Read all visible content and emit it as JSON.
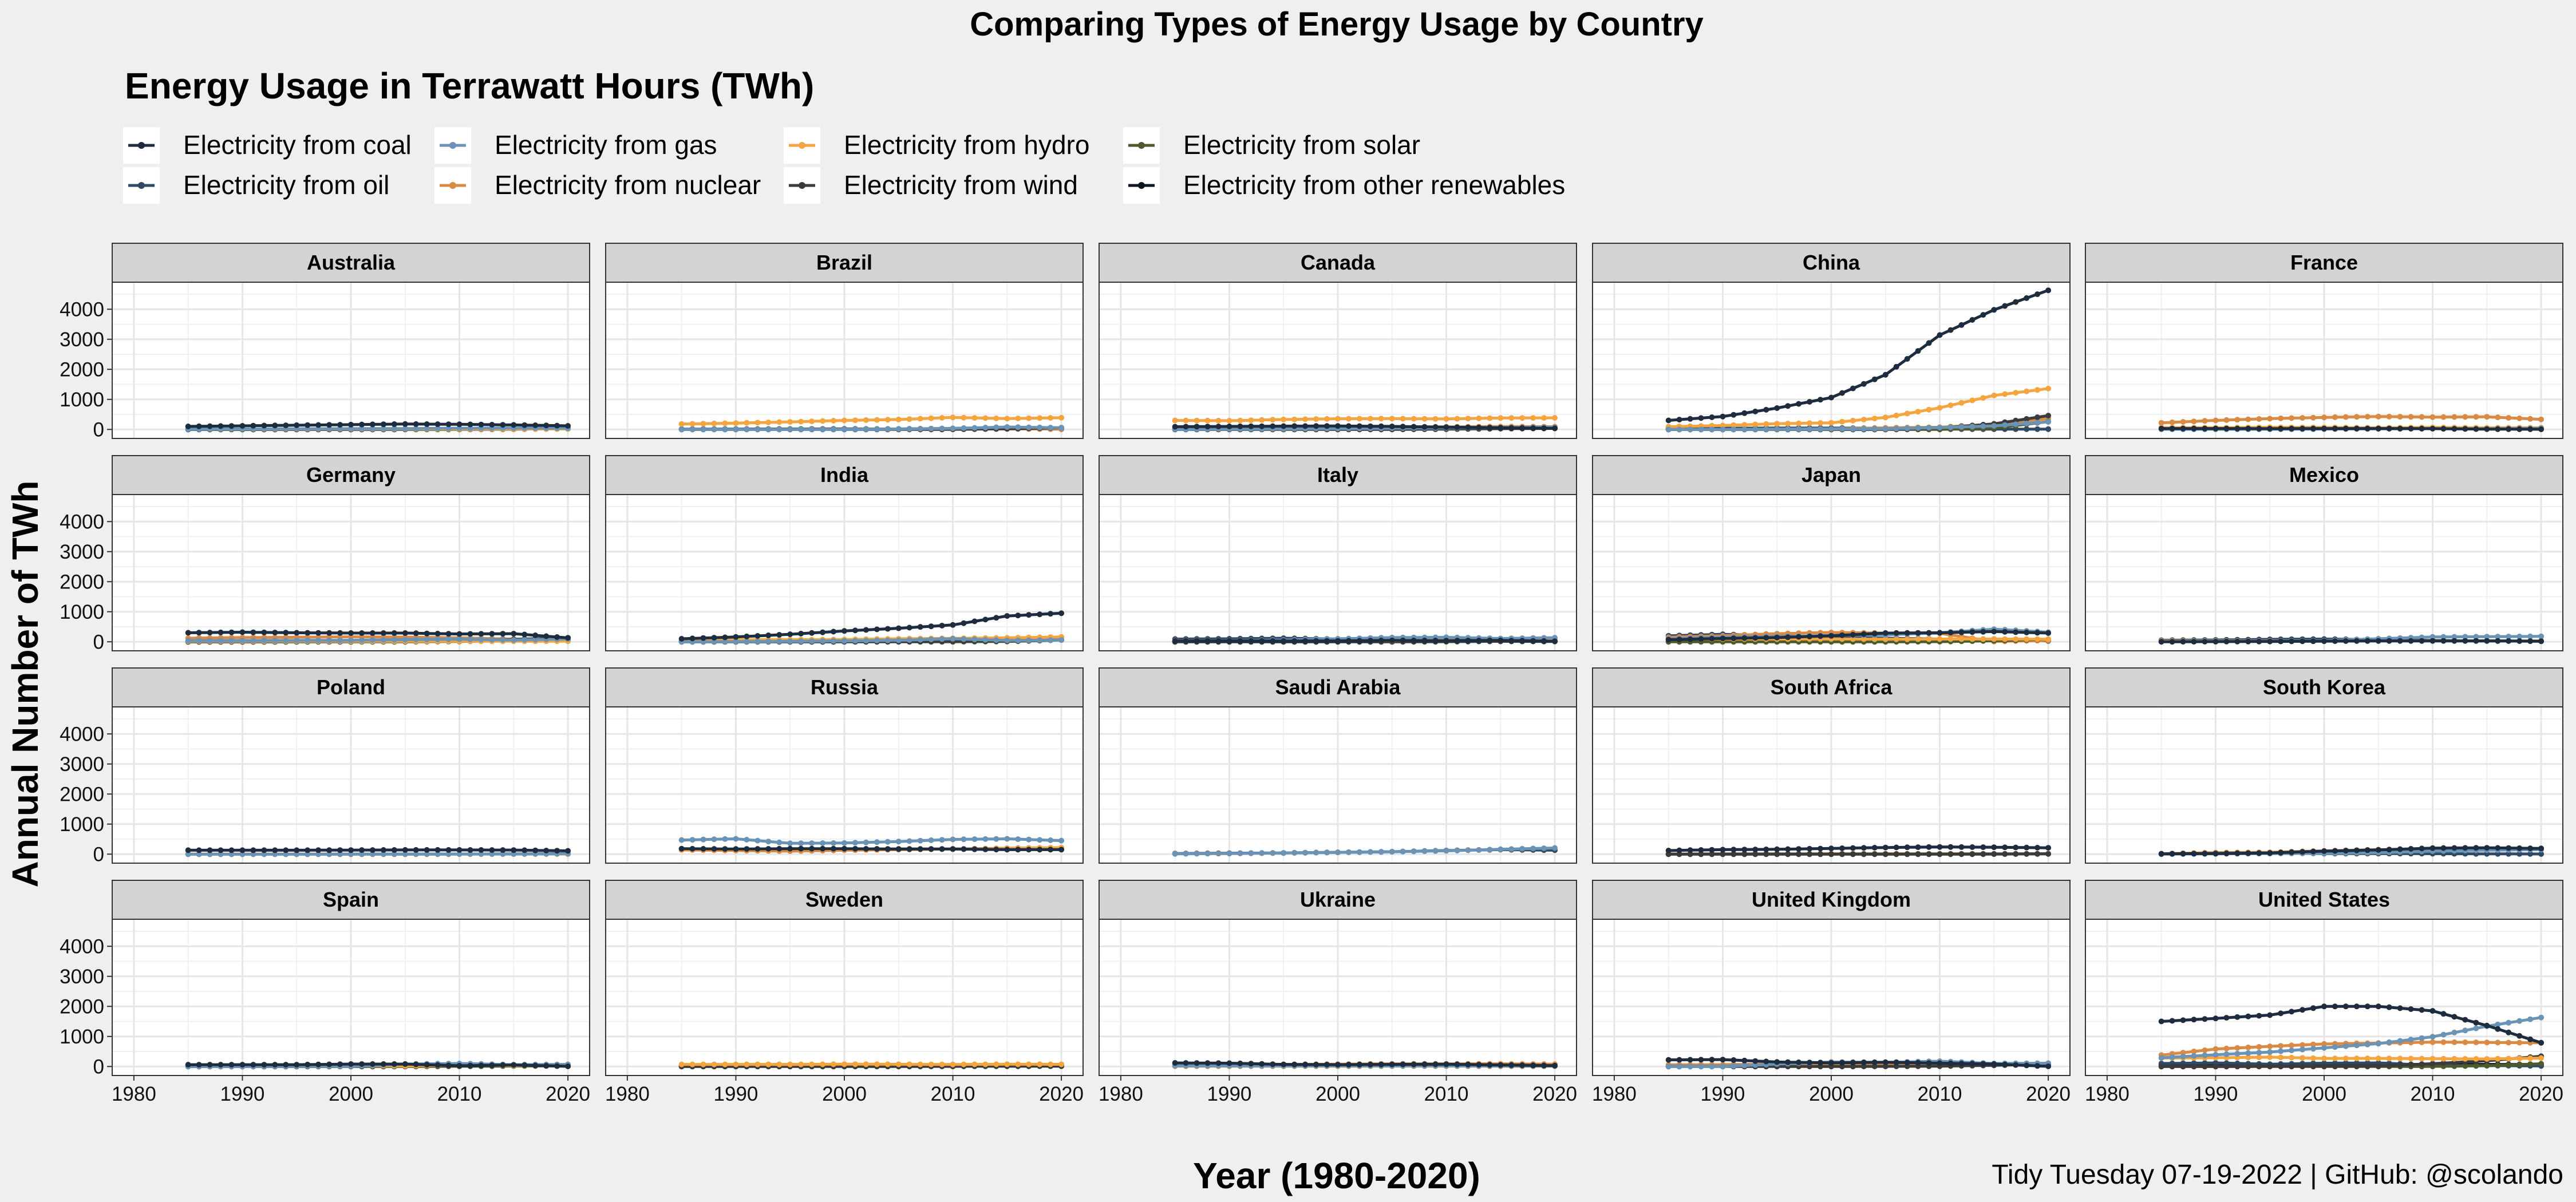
{
  "title": "Comparing Types of Energy Usage by Country",
  "legend_title": "Energy Usage in Terrawatt Hours (TWh)",
  "caption": "Tidy Tuesday 07-19-2022 | GitHub: @scolando",
  "colors": {
    "coal": "#1d2c3e",
    "oil": "#2f4a66",
    "gas": "#6a93b6",
    "nuclear": "#d98a44",
    "hydro": "#f4a540",
    "wind": "#3b3b3b",
    "solar": "#4c5a2c",
    "other": "#0e1620",
    "background": "#efefef",
    "panel": "#ffffff",
    "strip": "#d3d3d3",
    "grid": "#e6e6e6"
  },
  "chart_data": {
    "type": "line",
    "facet": "country",
    "xlabel": "Year (1980-2020)",
    "ylabel": "Annual Number of TWh",
    "xlim": [
      1978,
      2022
    ],
    "ylim": [
      -300,
      4900
    ],
    "x_ticks": [
      1980,
      1990,
      2000,
      2010,
      2020
    ],
    "y_ticks": [
      0,
      1000,
      2000,
      3000,
      4000
    ],
    "grid": true,
    "legend_position": "top-left",
    "x": [
      1985,
      1990,
      1995,
      2000,
      2005,
      2010,
      2015,
      2020
    ],
    "series_names": [
      {
        "key": "coal",
        "name": "Electricity from coal"
      },
      {
        "key": "gas",
        "name": "Electricity from gas"
      },
      {
        "key": "hydro",
        "name": "Electricity from hydro"
      },
      {
        "key": "solar",
        "name": "Electricity from solar"
      },
      {
        "key": "oil",
        "name": "Electricity from oil"
      },
      {
        "key": "nuclear",
        "name": "Electricity from nuclear"
      },
      {
        "key": "wind",
        "name": "Electricity from wind"
      },
      {
        "key": "other",
        "name": "Electricity from other renewables"
      }
    ],
    "facets": [
      {
        "country": "Australia",
        "series": {
          "coal": [
            100,
            120,
            140,
            160,
            180,
            170,
            150,
            120
          ],
          "gas": [
            10,
            15,
            20,
            25,
            30,
            40,
            45,
            40
          ],
          "hydro": [
            15,
            15,
            15,
            16,
            16,
            14,
            14,
            15
          ],
          "wind": [
            0,
            0,
            0,
            0,
            2,
            5,
            12,
            20
          ],
          "solar": [
            0,
            0,
            0,
            0,
            0,
            2,
            6,
            30
          ]
        }
      },
      {
        "country": "Brazil",
        "series": {
          "hydro": [
            180,
            210,
            250,
            300,
            330,
            400,
            360,
            390
          ],
          "gas": [
            0,
            0,
            2,
            5,
            15,
            35,
            80,
            55
          ],
          "oil": [
            10,
            12,
            14,
            18,
            14,
            15,
            25,
            10
          ],
          "wind": [
            0,
            0,
            0,
            0,
            0,
            2,
            22,
            55
          ],
          "other": [
            5,
            7,
            9,
            10,
            15,
            30,
            50,
            55
          ],
          "nuclear": [
            2,
            2,
            3,
            5,
            10,
            14,
            15,
            14
          ]
        }
      },
      {
        "country": "Canada",
        "series": {
          "hydro": [
            300,
            290,
            330,
            355,
            360,
            350,
            380,
            385
          ],
          "nuclear": [
            55,
            70,
            90,
            70,
            85,
            85,
            95,
            90
          ],
          "coal": [
            90,
            100,
            110,
            115,
            100,
            75,
            55,
            35
          ],
          "gas": [
            10,
            15,
            20,
            30,
            40,
            50,
            60,
            70
          ],
          "wind": [
            0,
            0,
            0,
            0,
            1,
            10,
            25,
            35
          ]
        }
      },
      {
        "country": "China",
        "series": {
          "coal": [
            300,
            430,
            710,
            1060,
            1820,
            3140,
            3980,
            4630
          ],
          "hydro": [
            90,
            130,
            190,
            220,
            400,
            720,
            1130,
            1360
          ],
          "wind": [
            0,
            0,
            0,
            0,
            2,
            45,
            185,
            460
          ],
          "solar": [
            0,
            0,
            0,
            0,
            0,
            1,
            45,
            260
          ],
          "nuclear": [
            0,
            0,
            12,
            17,
            53,
            74,
            170,
            360
          ],
          "gas": [
            0,
            0,
            5,
            15,
            20,
            60,
            120,
            250
          ],
          "oil": [
            40,
            40,
            45,
            45,
            40,
            10,
            10,
            10
          ]
        }
      },
      {
        "country": "France",
        "series": {
          "nuclear": [
            220,
            300,
            360,
            400,
            430,
            410,
            420,
            335
          ],
          "hydro": [
            60,
            55,
            70,
            65,
            55,
            65,
            55,
            60
          ],
          "coal": [
            30,
            30,
            25,
            30,
            30,
            25,
            10,
            5
          ],
          "gas": [
            5,
            5,
            5,
            10,
            20,
            25,
            20,
            35
          ]
        }
      },
      {
        "country": "Germany",
        "series": {
          "coal": [
            300,
            320,
            300,
            290,
            290,
            260,
            270,
            130
          ],
          "nuclear": [
            120,
            140,
            150,
            165,
            155,
            130,
            90,
            60
          ],
          "gas": [
            40,
            40,
            45,
            50,
            70,
            85,
            60,
            95
          ],
          "wind": [
            0,
            0,
            2,
            10,
            30,
            40,
            80,
            130
          ],
          "solar": [
            0,
            0,
            0,
            0,
            1,
            10,
            40,
            50
          ],
          "hydro": [
            18,
            18,
            20,
            20,
            20,
            20,
            18,
            20
          ]
        }
      },
      {
        "country": "India",
        "series": {
          "coal": [
            100,
            160,
            250,
            360,
            450,
            560,
            860,
            950
          ],
          "hydro": [
            50,
            70,
            70,
            75,
            100,
            115,
            130,
            160
          ],
          "gas": [
            0,
            5,
            15,
            30,
            50,
            100,
            45,
            60
          ],
          "wind": [
            0,
            0,
            1,
            2,
            6,
            20,
            35,
            65
          ],
          "solar": [
            0,
            0,
            0,
            0,
            0,
            0,
            10,
            60
          ]
        }
      },
      {
        "country": "Italy",
        "series": {
          "gas": [
            30,
            40,
            60,
            100,
            140,
            150,
            110,
            135
          ],
          "oil": [
            90,
            100,
            120,
            90,
            40,
            30,
            15,
            10
          ],
          "hydro": [
            40,
            35,
            40,
            45,
            40,
            50,
            45,
            50
          ],
          "coal": [
            30,
            30,
            25,
            30,
            45,
            40,
            45,
            20
          ],
          "solar": [
            0,
            0,
            0,
            0,
            0,
            2,
            22,
            25
          ],
          "wind": [
            0,
            0,
            0,
            0,
            2,
            9,
            15,
            18
          ]
        }
      },
      {
        "country": "Japan",
        "series": {
          "nuclear": [
            150,
            200,
            270,
            310,
            290,
            280,
            10,
            45
          ],
          "coal": [
            70,
            110,
            140,
            200,
            290,
            300,
            340,
            290
          ],
          "gas": [
            100,
            150,
            170,
            210,
            230,
            300,
            420,
            320
          ],
          "oil": [
            200,
            250,
            200,
            140,
            120,
            90,
            90,
            30
          ],
          "hydro": [
            90,
            90,
            90,
            95,
            85,
            90,
            90,
            85
          ],
          "solar": [
            0,
            0,
            0,
            0,
            0,
            4,
            35,
            85
          ]
        }
      },
      {
        "country": "Mexico",
        "series": {
          "gas": [
            10,
            15,
            20,
            40,
            100,
            160,
            170,
            180
          ],
          "oil": [
            50,
            60,
            80,
            90,
            70,
            45,
            30,
            20
          ],
          "hydro": [
            25,
            25,
            27,
            33,
            27,
            36,
            30,
            27
          ],
          "coal": [
            1,
            5,
            10,
            20,
            30,
            30,
            30,
            20
          ]
        }
      },
      {
        "country": "Poland",
        "series": {
          "coal": [
            130,
            130,
            130,
            135,
            140,
            140,
            135,
            110
          ],
          "gas": [
            0,
            0,
            0,
            2,
            5,
            5,
            5,
            15
          ],
          "wind": [
            0,
            0,
            0,
            0,
            0,
            2,
            10,
            15
          ],
          "hydro": [
            3,
            3,
            3,
            3,
            3,
            3,
            3,
            3
          ]
        }
      },
      {
        "country": "Russia",
        "series": {
          "gas": [
            470,
            510,
            360,
            370,
            420,
            490,
            510,
            450
          ],
          "nuclear": [
            140,
            120,
            100,
            130,
            150,
            170,
            195,
            215
          ],
          "hydro": [
            150,
            160,
            175,
            165,
            175,
            165,
            170,
            215
          ],
          "coal": [
            180,
            170,
            180,
            180,
            170,
            170,
            150,
            150
          ]
        }
      },
      {
        "country": "Saudi Arabia",
        "series": {
          "oil": [
            20,
            30,
            40,
            60,
            80,
            120,
            150,
            130
          ],
          "gas": [
            10,
            20,
            40,
            60,
            80,
            110,
            160,
            205
          ]
        }
      },
      {
        "country": "South Africa",
        "series": {
          "coal": [
            120,
            150,
            160,
            190,
            220,
            240,
            230,
            210
          ],
          "nuclear": [
            0,
            10,
            10,
            13,
            12,
            12,
            12,
            12
          ],
          "solar": [
            0,
            0,
            0,
            0,
            0,
            0,
            2,
            10
          ],
          "wind": [
            0,
            0,
            0,
            0,
            0,
            0,
            3,
            10
          ]
        }
      },
      {
        "country": "South Korea",
        "series": {
          "coal": [
            10,
            20,
            40,
            100,
            140,
            200,
            210,
            190
          ],
          "nuclear": [
            15,
            50,
            60,
            110,
            150,
            150,
            165,
            165
          ],
          "gas": [
            0,
            10,
            20,
            30,
            50,
            100,
            130,
            150
          ],
          "oil": [
            15,
            20,
            35,
            20,
            20,
            15,
            10,
            5
          ]
        }
      },
      {
        "country": "Spain",
        "series": {
          "nuclear": [
            25,
            50,
            55,
            60,
            55,
            60,
            55,
            55
          ],
          "coal": [
            60,
            60,
            60,
            80,
            80,
            25,
            50,
            5
          ],
          "gas": [
            0,
            0,
            5,
            10,
            80,
            100,
            60,
            70
          ],
          "wind": [
            0,
            0,
            0,
            5,
            20,
            45,
            50,
            55
          ],
          "hydro": [
            30,
            25,
            25,
            30,
            20,
            45,
            30,
            30
          ],
          "solar": [
            0,
            0,
            0,
            0,
            0,
            6,
            14,
            20
          ]
        }
      },
      {
        "country": "Sweden",
        "series": {
          "hydro": [
            70,
            70,
            68,
            78,
            72,
            68,
            75,
            71
          ],
          "nuclear": [
            55,
            65,
            70,
            55,
            70,
            55,
            55,
            48
          ],
          "wind": [
            0,
            0,
            0,
            0,
            1,
            3,
            16,
            27
          ],
          "other": [
            3,
            4,
            6,
            7,
            9,
            12,
            11,
            12
          ]
        }
      },
      {
        "country": "Ukraine",
        "series": {
          "coal": [
            120,
            110,
            70,
            60,
            70,
            75,
            50,
            30
          ],
          "nuclear": [
            60,
            75,
            70,
            77,
            89,
            89,
            88,
            76
          ],
          "gas": [
            20,
            20,
            20,
            20,
            20,
            20,
            15,
            15
          ],
          "hydro": [
            10,
            10,
            10,
            11,
            12,
            13,
            7,
            7
          ]
        }
      },
      {
        "country": "United Kingdom",
        "series": {
          "coal": [
            220,
            230,
            150,
            120,
            140,
            110,
            80,
            5
          ],
          "gas": [
            0,
            1,
            80,
            150,
            140,
            175,
            100,
            110
          ],
          "nuclear": [
            55,
            60,
            85,
            85,
            80,
            60,
            70,
            50
          ],
          "wind": [
            0,
            0,
            0,
            1,
            3,
            10,
            40,
            75
          ]
        }
      },
      {
        "country": "United States",
        "series": {
          "coal": [
            1500,
            1600,
            1710,
            2000,
            2000,
            1850,
            1360,
            790
          ],
          "gas": [
            290,
            390,
            480,
            620,
            760,
            990,
            1340,
            1630
          ],
          "nuclear": [
            380,
            580,
            670,
            750,
            780,
            810,
            800,
            790
          ],
          "hydro": [
            280,
            290,
            310,
            270,
            270,
            260,
            250,
            280
          ],
          "wind": [
            0,
            0,
            5,
            6,
            18,
            95,
            190,
            340
          ],
          "solar": [
            0,
            0,
            0,
            0,
            0,
            2,
            25,
            90
          ],
          "other": [
            60,
            70,
            70,
            70,
            70,
            70,
            70,
            70
          ],
          "oil": [
            100,
            120,
            75,
            110,
            120,
            35,
            30,
            20
          ]
        }
      }
    ]
  }
}
